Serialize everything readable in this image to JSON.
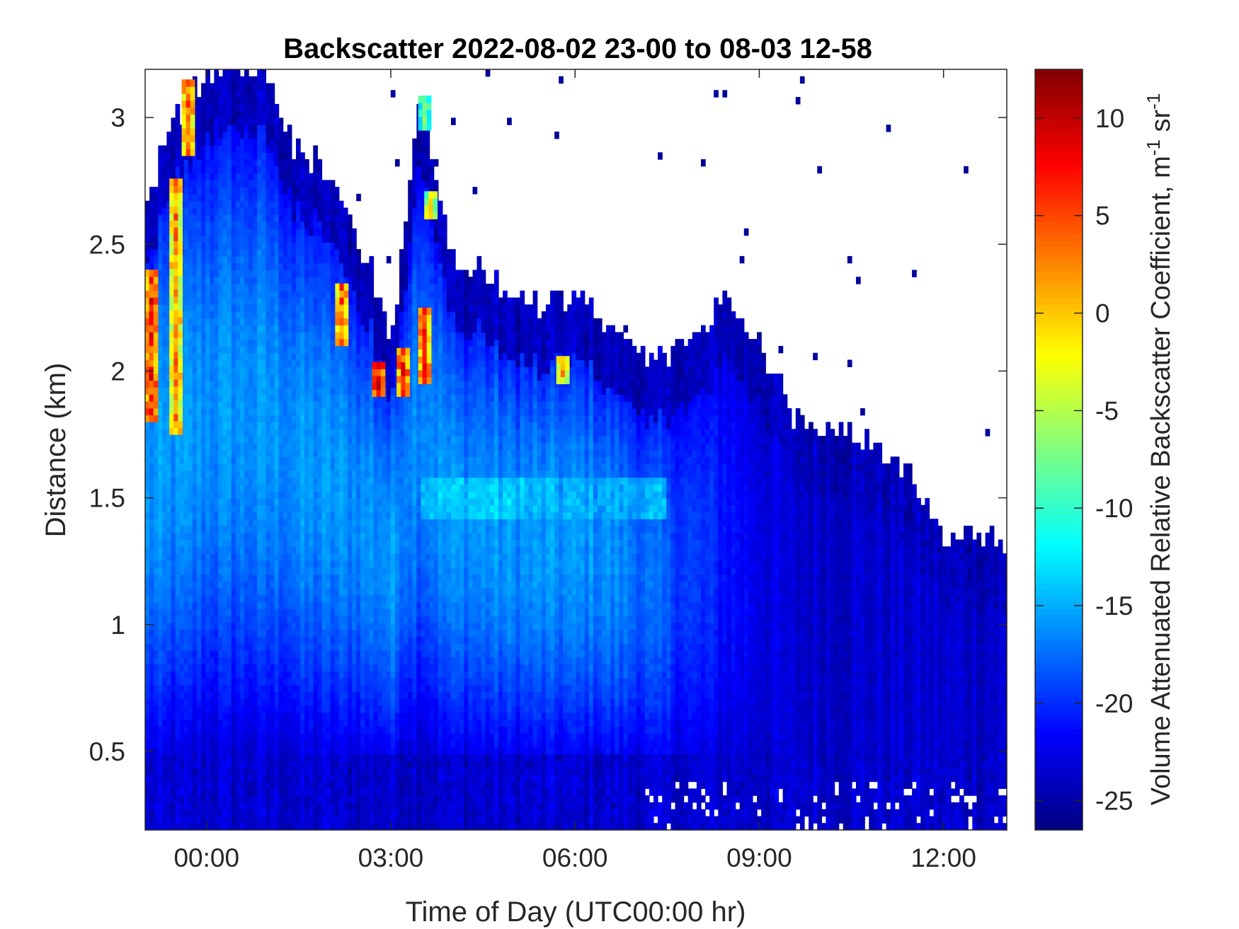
{
  "chart_data": {
    "type": "heatmap",
    "title": "Backscatter 2022-08-02 23-00 to 08-03 12-58",
    "xlabel": "Time of Day (UTC00:00 hr)",
    "ylabel": "Distance (km)",
    "colorbar_label": "Volume Attenuated Relative Backscatter Coefficient, m",
    "colorbar_label_sup1": "-1",
    "colorbar_label_mid": " sr",
    "colorbar_label_sup2": "-1",
    "colormap": "jet",
    "x_range_hours": [
      -1.0,
      13.03
    ],
    "x_ticks": [
      {
        "value": 0,
        "label": "00:00"
      },
      {
        "value": 3,
        "label": "03:00"
      },
      {
        "value": 6,
        "label": "06:00"
      },
      {
        "value": 9,
        "label": "09:00"
      },
      {
        "value": 12,
        "label": "12:00"
      }
    ],
    "ylim": [
      0.19,
      3.19
    ],
    "y_ticks": [
      {
        "value": 0.5,
        "label": "0.5"
      },
      {
        "value": 1,
        "label": "1"
      },
      {
        "value": 1.5,
        "label": "1.5"
      },
      {
        "value": 2,
        "label": "2"
      },
      {
        "value": 2.5,
        "label": "2.5"
      },
      {
        "value": 3,
        "label": "3"
      }
    ],
    "clim": [
      -26.5,
      12.5
    ],
    "colorbar_ticks": [
      {
        "value": 10,
        "label": "10"
      },
      {
        "value": 5,
        "label": "5"
      },
      {
        "value": 0,
        "label": "0"
      },
      {
        "value": -5,
        "label": "-5"
      },
      {
        "value": -10,
        "label": "-10"
      },
      {
        "value": -15,
        "label": "-15"
      },
      {
        "value": -20,
        "label": "-20"
      },
      {
        "value": -25,
        "label": "-25"
      }
    ],
    "grid": false,
    "cloud_top_km": [
      [
        -1.0,
        2.65
      ],
      [
        -0.5,
        3.0
      ],
      [
        0.0,
        3.19
      ],
      [
        0.5,
        3.19
      ],
      [
        1.0,
        3.19
      ],
      [
        1.5,
        2.85
      ],
      [
        2.0,
        2.8
      ],
      [
        2.3,
        2.6
      ],
      [
        2.7,
        2.4
      ],
      [
        3.0,
        2.1
      ],
      [
        3.5,
        3.1
      ],
      [
        4.0,
        2.45
      ],
      [
        4.5,
        2.4
      ],
      [
        5.0,
        2.3
      ],
      [
        5.5,
        2.25
      ],
      [
        6.0,
        2.3
      ],
      [
        6.5,
        2.2
      ],
      [
        7.0,
        2.05
      ],
      [
        7.5,
        2.05
      ],
      [
        8.0,
        2.15
      ],
      [
        8.5,
        2.3
      ],
      [
        9.0,
        2.1
      ],
      [
        9.5,
        1.85
      ],
      [
        10.0,
        1.8
      ],
      [
        10.5,
        1.75
      ],
      [
        11.0,
        1.65
      ],
      [
        11.5,
        1.6
      ],
      [
        12.0,
        1.35
      ],
      [
        12.5,
        1.35
      ],
      [
        13.03,
        1.35
      ]
    ],
    "low_layer": [
      {
        "center_km": 1.5,
        "value_db": -14,
        "time_from": 3.5,
        "time_to": 5.2
      },
      {
        "center_km": 1.5,
        "value_db": -15,
        "time_from": 5.2,
        "time_to": 7.5
      }
    ],
    "strong_returns": [
      {
        "time": -0.9,
        "top_km": 2.4,
        "bottom_km": 1.8,
        "value_db": 6
      },
      {
        "time": -0.5,
        "top_km": 2.75,
        "bottom_km": 1.75,
        "value_db": 2
      },
      {
        "time": -0.3,
        "top_km": 3.15,
        "bottom_km": 2.85,
        "value_db": 4
      },
      {
        "time": 2.2,
        "top_km": 2.35,
        "bottom_km": 2.1,
        "value_db": 4
      },
      {
        "time": 2.8,
        "top_km": 2.05,
        "bottom_km": 1.9,
        "value_db": 8
      },
      {
        "time": 3.2,
        "top_km": 2.1,
        "bottom_km": 1.9,
        "value_db": 6
      },
      {
        "time": 3.55,
        "top_km": 2.25,
        "bottom_km": 1.95,
        "value_db": 5
      },
      {
        "time": 3.65,
        "top_km": 2.7,
        "bottom_km": 2.6,
        "value_db": -2
      },
      {
        "time": 3.55,
        "top_km": 3.1,
        "bottom_km": 2.95,
        "value_db": -6
      },
      {
        "time": 5.8,
        "top_km": 2.05,
        "bottom_km": 1.95,
        "value_db": 0
      }
    ]
  }
}
